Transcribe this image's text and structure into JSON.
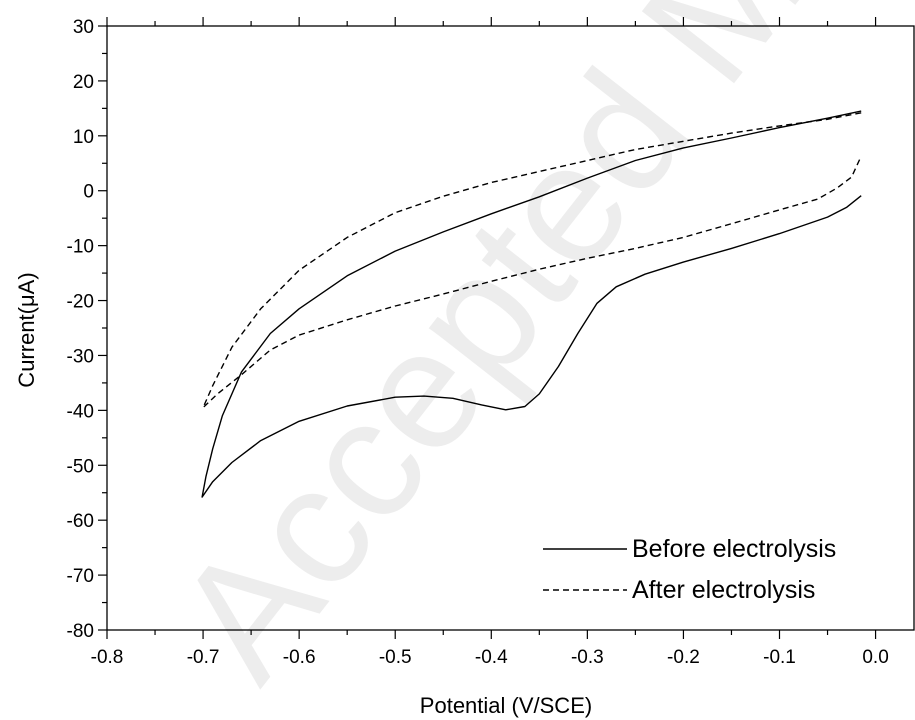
{
  "watermark": "Accepted Manuscript",
  "chart_data": {
    "type": "line",
    "title": "",
    "xlabel": "Potential (V/SCE)",
    "ylabel": "Current(μA)",
    "xlim": [
      -0.8,
      0.04
    ],
    "ylim": [
      -80,
      30
    ],
    "x_ticks": [
      -0.8,
      -0.7,
      -0.6,
      -0.5,
      -0.4,
      -0.3,
      -0.2,
      -0.1,
      0.0
    ],
    "x_tick_labels": [
      "-0.8",
      "-0.7",
      "-0.6",
      "-0.5",
      "-0.4",
      "-0.3",
      "-0.2",
      "-0.1",
      "0.0"
    ],
    "y_ticks": [
      -80,
      -70,
      -60,
      -50,
      -40,
      -30,
      -20,
      -10,
      0,
      10,
      20,
      30
    ],
    "y_tick_labels": [
      "-80",
      "-70",
      "-60",
      "-50",
      "-40",
      "-30",
      "-20",
      "-10",
      "0",
      "10",
      "20",
      "30"
    ],
    "grid": false,
    "legend_position": "bottom-right",
    "series": [
      {
        "name": "Before electrolysis",
        "style": "solid",
        "color": "#000000",
        "points": [
          [
            -0.015,
            14.5
          ],
          [
            -0.05,
            13.2
          ],
          [
            -0.1,
            11.5
          ],
          [
            -0.15,
            9.6
          ],
          [
            -0.2,
            7.8
          ],
          [
            -0.25,
            5.5
          ],
          [
            -0.3,
            2.3
          ],
          [
            -0.35,
            -1.1
          ],
          [
            -0.4,
            -4.2
          ],
          [
            -0.45,
            -7.5
          ],
          [
            -0.5,
            -11.0
          ],
          [
            -0.55,
            -15.5
          ],
          [
            -0.6,
            -21.5
          ],
          [
            -0.63,
            -26.0
          ],
          [
            -0.66,
            -33.0
          ],
          [
            -0.68,
            -41.0
          ],
          [
            -0.69,
            -47.0
          ],
          [
            -0.697,
            -52.0
          ],
          [
            -0.701,
            -55.8
          ],
          [
            -0.69,
            -53.0
          ],
          [
            -0.67,
            -49.5
          ],
          [
            -0.64,
            -45.5
          ],
          [
            -0.6,
            -42.0
          ],
          [
            -0.55,
            -39.2
          ],
          [
            -0.5,
            -37.6
          ],
          [
            -0.47,
            -37.4
          ],
          [
            -0.44,
            -37.8
          ],
          [
            -0.41,
            -39.0
          ],
          [
            -0.385,
            -39.9
          ],
          [
            -0.365,
            -39.3
          ],
          [
            -0.35,
            -37.0
          ],
          [
            -0.33,
            -32.0
          ],
          [
            -0.31,
            -26.0
          ],
          [
            -0.29,
            -20.5
          ],
          [
            -0.27,
            -17.5
          ],
          [
            -0.24,
            -15.2
          ],
          [
            -0.2,
            -13.0
          ],
          [
            -0.15,
            -10.5
          ],
          [
            -0.1,
            -7.8
          ],
          [
            -0.05,
            -4.8
          ],
          [
            -0.03,
            -3.0
          ],
          [
            -0.015,
            -0.9
          ]
        ]
      },
      {
        "name": "After electrolysis",
        "style": "dashed",
        "color": "#000000",
        "points": [
          [
            -0.015,
            14.2
          ],
          [
            -0.05,
            13.0
          ],
          [
            -0.1,
            11.8
          ],
          [
            -0.15,
            10.5
          ],
          [
            -0.2,
            9.0
          ],
          [
            -0.25,
            7.5
          ],
          [
            -0.3,
            5.5
          ],
          [
            -0.35,
            3.5
          ],
          [
            -0.4,
            1.5
          ],
          [
            -0.45,
            -1.0
          ],
          [
            -0.5,
            -4.0
          ],
          [
            -0.55,
            -8.5
          ],
          [
            -0.6,
            -14.5
          ],
          [
            -0.64,
            -21.5
          ],
          [
            -0.67,
            -28.5
          ],
          [
            -0.69,
            -35.5
          ],
          [
            -0.7,
            -39.5
          ],
          [
            -0.685,
            -37.0
          ],
          [
            -0.66,
            -33.5
          ],
          [
            -0.63,
            -29.0
          ],
          [
            -0.6,
            -26.3
          ],
          [
            -0.55,
            -23.5
          ],
          [
            -0.5,
            -21.0
          ],
          [
            -0.45,
            -18.8
          ],
          [
            -0.4,
            -16.5
          ],
          [
            -0.35,
            -14.3
          ],
          [
            -0.3,
            -12.3
          ],
          [
            -0.25,
            -10.5
          ],
          [
            -0.2,
            -8.5
          ],
          [
            -0.15,
            -6.0
          ],
          [
            -0.1,
            -3.5
          ],
          [
            -0.06,
            -1.5
          ],
          [
            -0.04,
            0.5
          ],
          [
            -0.025,
            2.5
          ],
          [
            -0.015,
            6.3
          ]
        ]
      }
    ]
  }
}
